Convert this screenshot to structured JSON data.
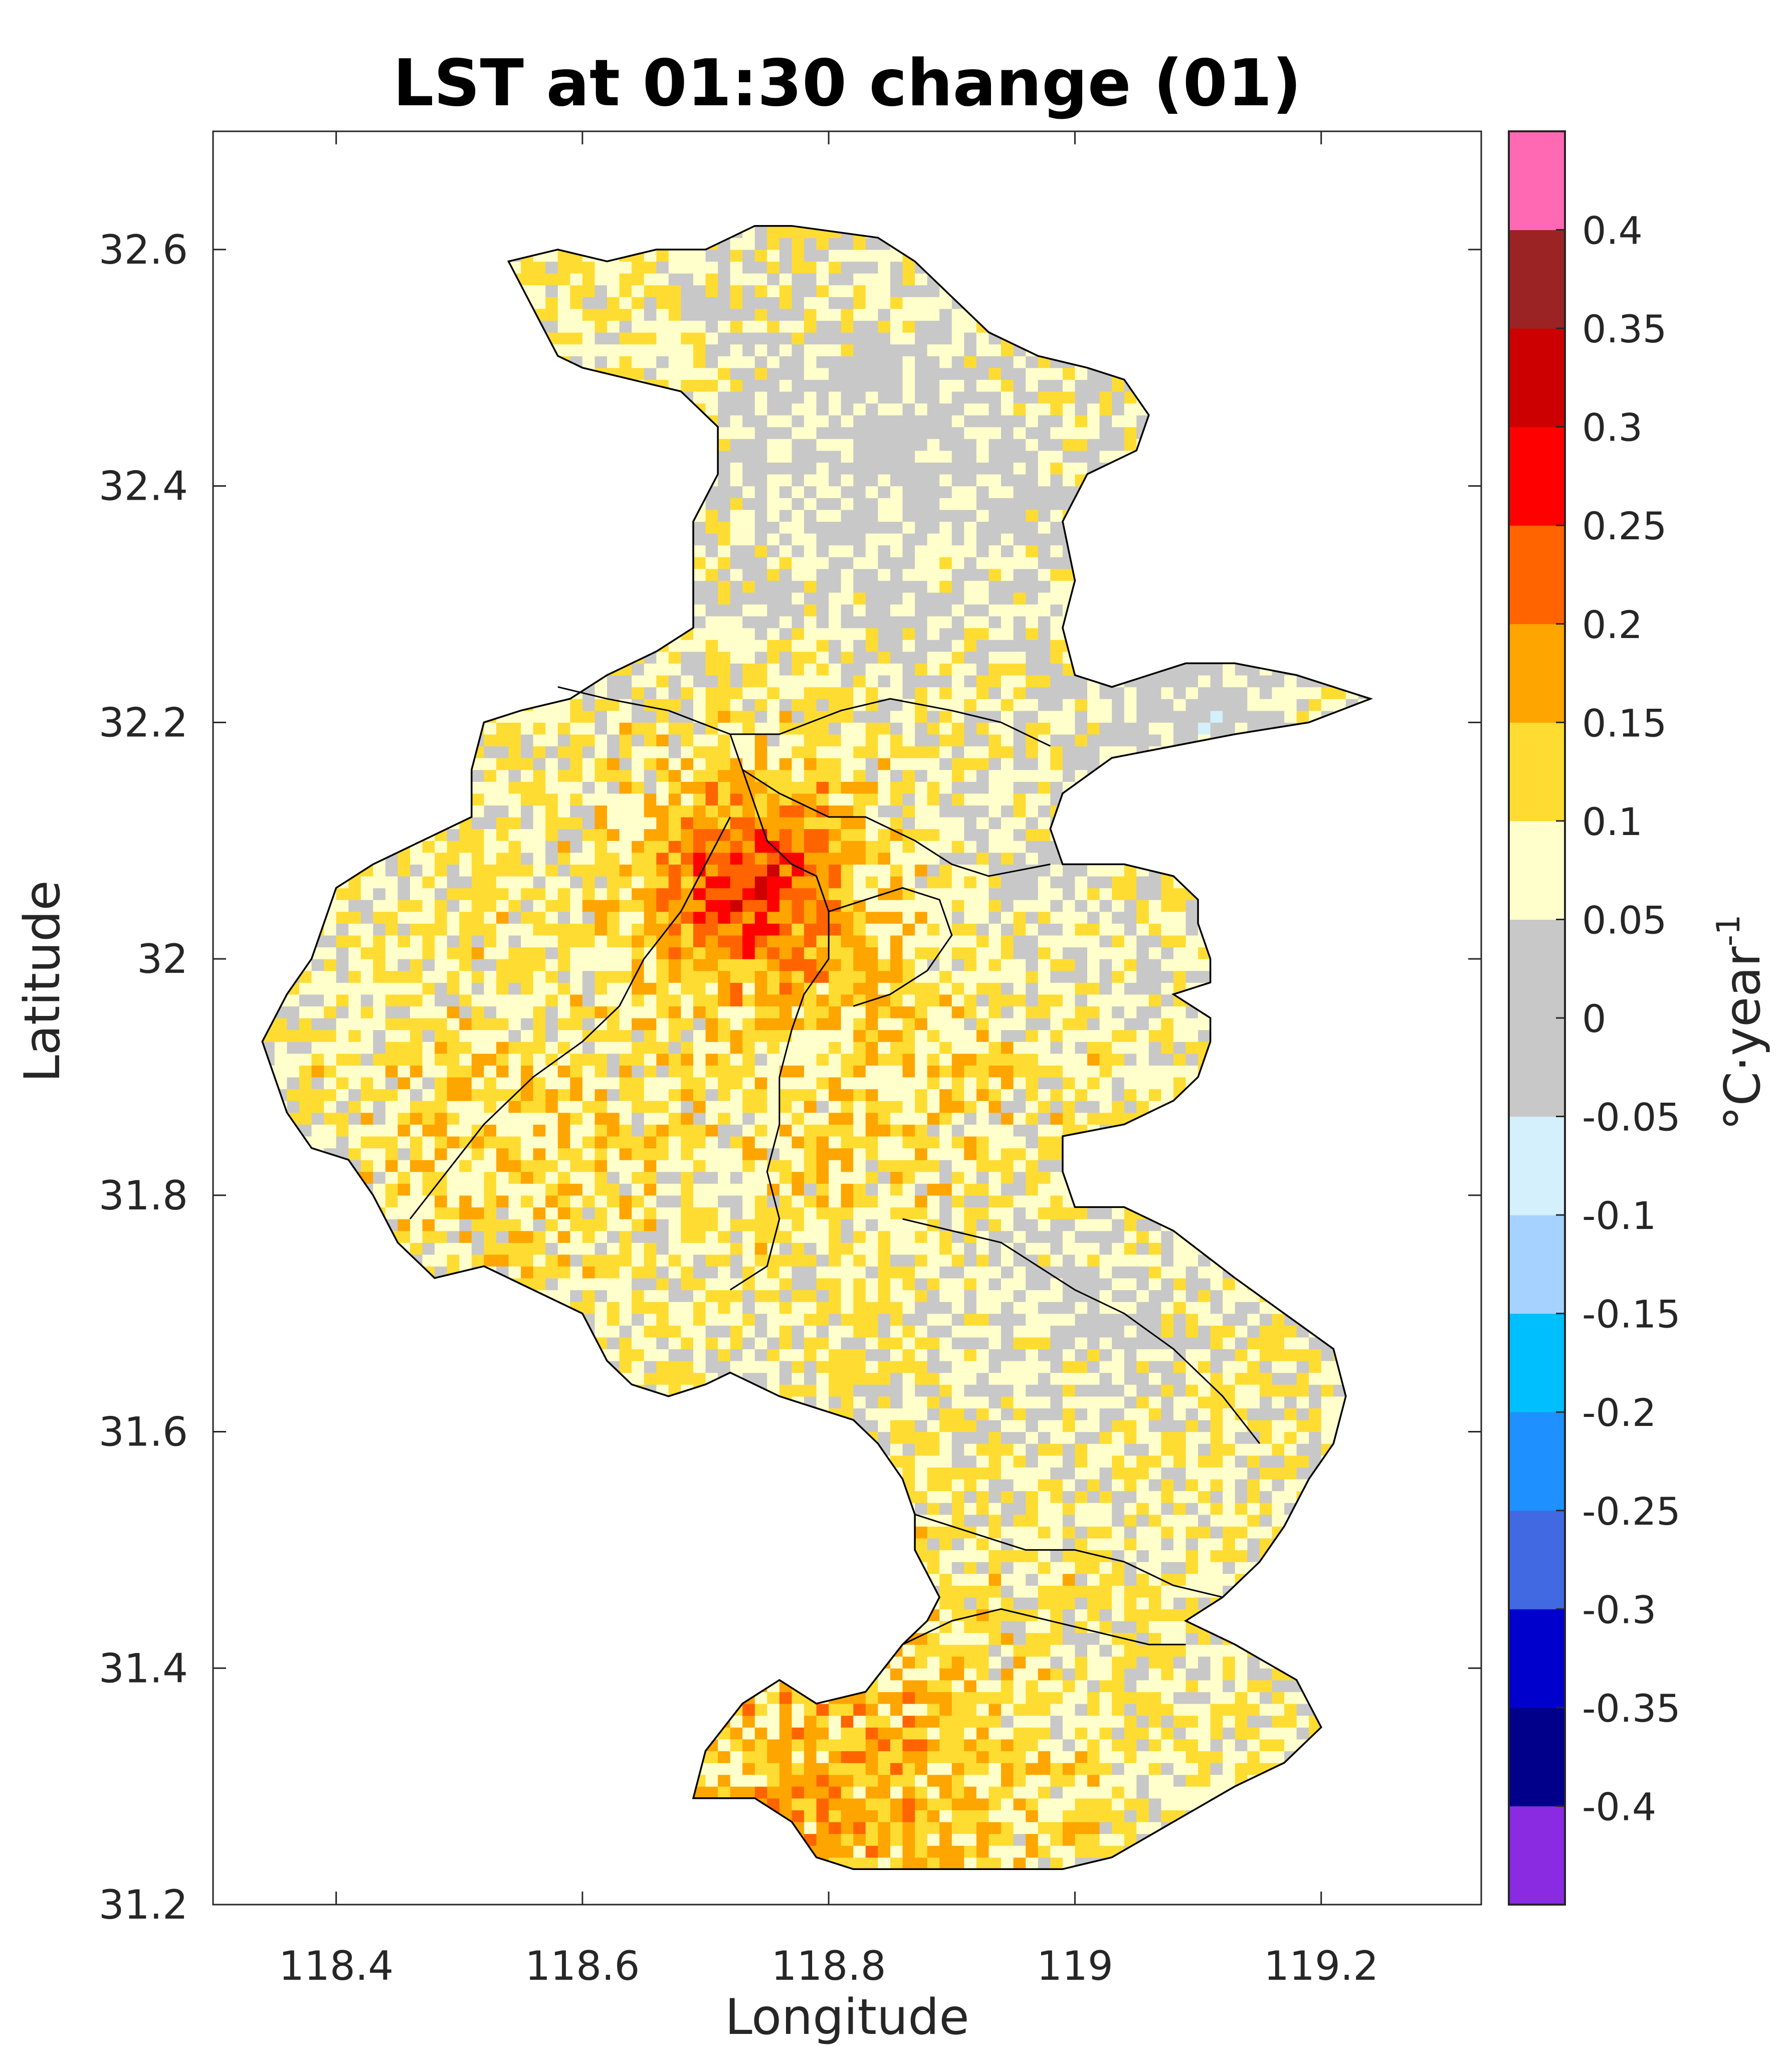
{
  "chart_data": {
    "type": "heatmap",
    "title": "LST at 01:30 change (01)",
    "xlabel": "Longitude",
    "ylabel": "Latitude",
    "xlim": [
      118.3,
      119.33
    ],
    "ylim": [
      31.2,
      32.7
    ],
    "x_ticks": [
      118.4,
      118.6,
      118.8,
      119,
      119.2
    ],
    "x_tick_labels": [
      "118.4",
      "118.6",
      "118.8",
      "119",
      "119.2"
    ],
    "y_ticks": [
      31.2,
      31.4,
      31.6,
      31.8,
      32,
      32.2,
      32.4,
      32.6
    ],
    "y_tick_labels": [
      "31.2",
      "31.4",
      "31.6",
      "31.8",
      "32",
      "32.2",
      "32.4",
      "32.6"
    ],
    "grid": false,
    "colorbar": {
      "label": "°C·year",
      "label_superscript": "-1",
      "range": [
        -0.45,
        0.45
      ],
      "bins": [
        {
          "from": -0.45,
          "to": -0.4,
          "color": "#8a2be2"
        },
        {
          "from": -0.4,
          "to": -0.35,
          "color": "#00008b"
        },
        {
          "from": -0.35,
          "to": -0.3,
          "color": "#0000cd"
        },
        {
          "from": -0.3,
          "to": -0.25,
          "color": "#4169e1"
        },
        {
          "from": -0.25,
          "to": -0.2,
          "color": "#1e90ff"
        },
        {
          "from": -0.2,
          "to": -0.15,
          "color": "#00bfff"
        },
        {
          "from": -0.15,
          "to": -0.1,
          "color": "#a6d2ff"
        },
        {
          "from": -0.1,
          "to": -0.05,
          "color": "#d4f0fc"
        },
        {
          "from": -0.05,
          "to": 0.05,
          "color": "#c8c8c8"
        },
        {
          "from": 0.05,
          "to": 0.1,
          "color": "#ffffcc"
        },
        {
          "from": 0.1,
          "to": 0.15,
          "color": "#ffdc32"
        },
        {
          "from": 0.15,
          "to": 0.2,
          "color": "#ffa500"
        },
        {
          "from": 0.2,
          "to": 0.25,
          "color": "#ff6400"
        },
        {
          "from": 0.25,
          "to": 0.3,
          "color": "#ff0000"
        },
        {
          "from": 0.3,
          "to": 0.35,
          "color": "#cc0000"
        },
        {
          "from": 0.35,
          "to": 0.4,
          "color": "#9b2323"
        },
        {
          "from": 0.4,
          "to": 0.45,
          "color": "#ff69b4"
        }
      ],
      "ticks": [
        0.4,
        0.35,
        0.3,
        0.25,
        0.2,
        0.15,
        0.1,
        0.05,
        0,
        -0.05,
        -0.1,
        -0.15,
        -0.2,
        -0.25,
        -0.3,
        -0.35,
        -0.4
      ],
      "tick_labels": [
        "0.4",
        "0.35",
        "0.3",
        "0.25",
        "0.2",
        "0.15",
        "0.1",
        "0.05",
        "0",
        "-0.05",
        "-0.1",
        "-0.15",
        "-0.2",
        "-0.25",
        "-0.3",
        "-0.35",
        "-0.4"
      ]
    },
    "region_outline": [
      [
        118.54,
        32.59
      ],
      [
        118.58,
        32.6
      ],
      [
        118.62,
        32.59
      ],
      [
        118.66,
        32.6
      ],
      [
        118.7,
        32.6
      ],
      [
        118.74,
        32.62
      ],
      [
        118.77,
        32.62
      ],
      [
        118.84,
        32.61
      ],
      [
        118.87,
        32.59
      ],
      [
        118.89,
        32.57
      ],
      [
        118.93,
        32.53
      ],
      [
        118.97,
        32.51
      ],
      [
        119.01,
        32.5
      ],
      [
        119.04,
        32.49
      ],
      [
        119.06,
        32.46
      ],
      [
        119.05,
        32.43
      ],
      [
        119.01,
        32.41
      ],
      [
        118.99,
        32.37
      ],
      [
        119.0,
        32.32
      ],
      [
        118.99,
        32.28
      ],
      [
        119.0,
        32.24
      ],
      [
        119.03,
        32.23
      ],
      [
        119.06,
        32.24
      ],
      [
        119.09,
        32.25
      ],
      [
        119.13,
        32.25
      ],
      [
        119.18,
        32.24
      ],
      [
        119.21,
        32.23
      ],
      [
        119.24,
        32.22
      ],
      [
        119.19,
        32.2
      ],
      [
        119.13,
        32.19
      ],
      [
        119.08,
        32.18
      ],
      [
        119.03,
        32.17
      ],
      [
        118.99,
        32.14
      ],
      [
        118.98,
        32.11
      ],
      [
        118.99,
        32.08
      ],
      [
        119.04,
        32.08
      ],
      [
        119.08,
        32.07
      ],
      [
        119.1,
        32.05
      ],
      [
        119.1,
        32.03
      ],
      [
        119.11,
        32.0
      ],
      [
        119.11,
        31.98
      ],
      [
        119.08,
        31.97
      ],
      [
        119.11,
        31.95
      ],
      [
        119.11,
        31.93
      ],
      [
        119.1,
        31.9
      ],
      [
        119.08,
        31.88
      ],
      [
        119.04,
        31.86
      ],
      [
        118.99,
        31.85
      ],
      [
        118.99,
        31.82
      ],
      [
        119.0,
        31.79
      ],
      [
        119.04,
        31.79
      ],
      [
        119.08,
        31.77
      ],
      [
        119.13,
        31.73
      ],
      [
        119.17,
        31.7
      ],
      [
        119.21,
        31.67
      ],
      [
        119.22,
        31.63
      ],
      [
        119.21,
        31.59
      ],
      [
        119.19,
        31.56
      ],
      [
        119.17,
        31.52
      ],
      [
        119.15,
        31.49
      ],
      [
        119.12,
        31.46
      ],
      [
        119.09,
        31.44
      ],
      [
        119.13,
        31.42
      ],
      [
        119.18,
        31.39
      ],
      [
        119.19,
        31.37
      ],
      [
        119.2,
        31.35
      ],
      [
        119.17,
        31.32
      ],
      [
        119.13,
        31.3
      ],
      [
        119.08,
        31.27
      ],
      [
        119.03,
        31.24
      ],
      [
        118.99,
        31.23
      ],
      [
        118.94,
        31.23
      ],
      [
        118.88,
        31.23
      ],
      [
        118.82,
        31.23
      ],
      [
        118.79,
        31.24
      ],
      [
        118.77,
        31.27
      ],
      [
        118.74,
        31.29
      ],
      [
        118.69,
        31.29
      ],
      [
        118.7,
        31.33
      ],
      [
        118.73,
        31.37
      ],
      [
        118.76,
        31.39
      ],
      [
        118.79,
        31.37
      ],
      [
        118.83,
        31.38
      ],
      [
        118.86,
        31.42
      ],
      [
        118.88,
        31.44
      ],
      [
        118.89,
        31.46
      ],
      [
        118.88,
        31.48
      ],
      [
        118.87,
        31.5
      ],
      [
        118.87,
        31.53
      ],
      [
        118.86,
        31.56
      ],
      [
        118.84,
        31.59
      ],
      [
        118.82,
        31.61
      ],
      [
        118.79,
        31.62
      ],
      [
        118.76,
        31.63
      ],
      [
        118.74,
        31.64
      ],
      [
        118.72,
        31.65
      ],
      [
        118.7,
        31.64
      ],
      [
        118.67,
        31.63
      ],
      [
        118.64,
        31.64
      ],
      [
        118.62,
        31.66
      ],
      [
        118.6,
        31.7
      ],
      [
        118.56,
        31.72
      ],
      [
        118.52,
        31.74
      ],
      [
        118.48,
        31.73
      ],
      [
        118.45,
        31.76
      ],
      [
        118.43,
        31.8
      ],
      [
        118.41,
        31.83
      ],
      [
        118.38,
        31.84
      ],
      [
        118.36,
        31.87
      ],
      [
        118.35,
        31.9
      ],
      [
        118.34,
        31.93
      ],
      [
        118.36,
        31.97
      ],
      [
        118.38,
        32.0
      ],
      [
        118.39,
        32.03
      ],
      [
        118.4,
        32.06
      ],
      [
        118.43,
        32.08
      ],
      [
        118.47,
        32.1
      ],
      [
        118.51,
        32.12
      ],
      [
        118.51,
        32.16
      ],
      [
        118.52,
        32.2
      ],
      [
        118.55,
        32.21
      ],
      [
        118.59,
        32.22
      ],
      [
        118.62,
        32.24
      ],
      [
        118.66,
        32.26
      ],
      [
        118.69,
        32.28
      ],
      [
        118.69,
        32.32
      ],
      [
        118.69,
        32.37
      ],
      [
        118.71,
        32.41
      ],
      [
        118.71,
        32.45
      ],
      [
        118.68,
        32.48
      ],
      [
        118.64,
        32.49
      ],
      [
        118.6,
        32.5
      ],
      [
        118.58,
        32.51
      ],
      [
        118.56,
        32.55
      ],
      [
        118.54,
        32.59
      ]
    ],
    "district_boundaries": [
      [
        [
          118.72,
          32.19
        ],
        [
          118.73,
          32.16
        ],
        [
          118.76,
          32.14
        ],
        [
          118.8,
          32.12
        ],
        [
          118.83,
          32.12
        ],
        [
          118.87,
          32.1
        ],
        [
          118.9,
          32.08
        ],
        [
          118.93,
          32.07
        ],
        [
          118.98,
          32.08
        ]
      ],
      [
        [
          118.73,
          32.16
        ],
        [
          118.74,
          32.13
        ],
        [
          118.75,
          32.1
        ],
        [
          118.77,
          32.08
        ],
        [
          118.79,
          32.07
        ],
        [
          118.8,
          32.04
        ],
        [
          118.8,
          32.0
        ],
        [
          118.78,
          31.97
        ],
        [
          118.77,
          31.94
        ],
        [
          118.76,
          31.9
        ],
        [
          118.76,
          31.86
        ],
        [
          118.75,
          31.82
        ],
        [
          118.76,
          31.78
        ],
        [
          118.75,
          31.74
        ],
        [
          118.72,
          31.72
        ]
      ],
      [
        [
          118.58,
          32.23
        ],
        [
          118.62,
          32.22
        ],
        [
          118.67,
          32.21
        ],
        [
          118.72,
          32.19
        ],
        [
          118.76,
          32.19
        ],
        [
          118.81,
          32.21
        ],
        [
          118.85,
          32.22
        ],
        [
          118.9,
          32.21
        ],
        [
          118.94,
          32.2
        ],
        [
          118.98,
          32.18
        ]
      ],
      [
        [
          118.72,
          32.12
        ],
        [
          118.7,
          32.08
        ],
        [
          118.68,
          32.04
        ],
        [
          118.65,
          32.0
        ],
        [
          118.63,
          31.96
        ],
        [
          118.6,
          31.93
        ],
        [
          118.56,
          31.9
        ],
        [
          118.52,
          31.86
        ],
        [
          118.49,
          31.82
        ],
        [
          118.46,
          31.78
        ]
      ],
      [
        [
          118.8,
          32.04
        ],
        [
          118.83,
          32.05
        ],
        [
          118.86,
          32.06
        ],
        [
          118.89,
          32.05
        ],
        [
          118.9,
          32.02
        ],
        [
          118.88,
          31.99
        ],
        [
          118.85,
          31.97
        ],
        [
          118.82,
          31.96
        ]
      ],
      [
        [
          118.86,
          31.78
        ],
        [
          118.9,
          31.77
        ],
        [
          118.94,
          31.76
        ],
        [
          118.97,
          31.74
        ],
        [
          119.0,
          31.72
        ],
        [
          119.04,
          31.7
        ],
        [
          119.08,
          31.67
        ],
        [
          119.12,
          31.63
        ],
        [
          119.15,
          31.59
        ]
      ],
      [
        [
          118.86,
          31.42
        ],
        [
          118.9,
          31.44
        ],
        [
          118.94,
          31.45
        ],
        [
          118.98,
          31.44
        ],
        [
          119.02,
          31.43
        ],
        [
          119.06,
          31.42
        ],
        [
          119.09,
          31.42
        ]
      ],
      [
        [
          118.87,
          31.53
        ],
        [
          118.9,
          31.52
        ],
        [
          118.93,
          31.51
        ],
        [
          118.96,
          31.5
        ],
        [
          119.0,
          31.5
        ],
        [
          119.04,
          31.49
        ],
        [
          119.08,
          31.47
        ],
        [
          119.12,
          31.46
        ]
      ]
    ]
  }
}
